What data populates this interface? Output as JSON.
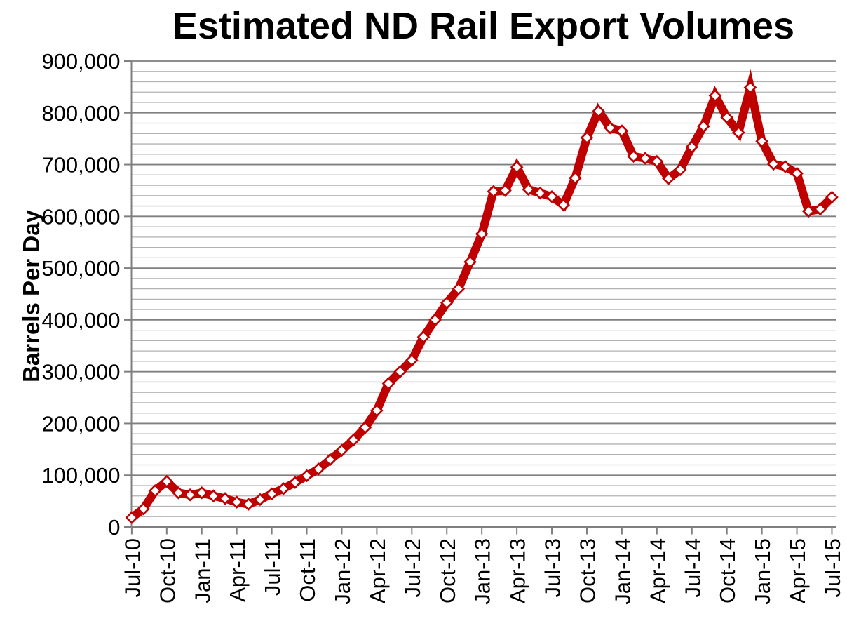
{
  "title": "Estimated ND Rail Export Volumes",
  "y_axis": {
    "title": "Barrels Per Day",
    "min": 0,
    "max": 900000,
    "major_step": 100000,
    "minor_step": 20000,
    "tick_labels": [
      "900,000",
      "800,000",
      "700,000",
      "600,000",
      "500,000",
      "400,000",
      "300,000",
      "200,000",
      "100,000",
      "0"
    ]
  },
  "x_axis": {
    "label_interval_months": 3,
    "visible_tick_labels": [
      "Jul-10",
      "Oct-10",
      "Jan-11",
      "Apr-11",
      "Jul-11",
      "Oct-11",
      "Jan-12",
      "Apr-12",
      "Jul-12",
      "Oct-12",
      "Jan-13",
      "Apr-13",
      "Jul-13",
      "Oct-13",
      "Jan-14",
      "Apr-14",
      "Jul-14",
      "Oct-14",
      "Jan-15",
      "Apr-15",
      "Jul-15"
    ]
  },
  "style": {
    "line_color": "#C00000",
    "line_width": 12,
    "marker_shape": "diamond",
    "marker_fill": "#FFFFFF",
    "marker_size": 15,
    "marker_stroke_width": 2.6,
    "minor_grid_color": "#B2B2B2",
    "major_grid_color": "#7F7F7F",
    "axis_color": "#7F7F7F",
    "text_color": "#000000",
    "background": "#FFFFFF"
  },
  "chart_data": {
    "type": "line",
    "title": "Estimated ND Rail Export Volumes",
    "xlabel": "",
    "ylabel": "Barrels Per Day",
    "ylim": [
      0,
      900000
    ],
    "grid": "horizontal major and minor",
    "legend": "none",
    "x": [
      "Jul-10",
      "Aug-10",
      "Sep-10",
      "Oct-10",
      "Nov-10",
      "Dec-10",
      "Jan-11",
      "Feb-11",
      "Mar-11",
      "Apr-11",
      "May-11",
      "Jun-11",
      "Jul-11",
      "Aug-11",
      "Sep-11",
      "Oct-11",
      "Nov-11",
      "Dec-11",
      "Jan-12",
      "Feb-12",
      "Mar-12",
      "Apr-12",
      "May-12",
      "Jun-12",
      "Jul-12",
      "Aug-12",
      "Sep-12",
      "Oct-12",
      "Nov-12",
      "Dec-12",
      "Jan-13",
      "Feb-13",
      "Mar-13",
      "Apr-13",
      "May-13",
      "Jun-13",
      "Jul-13",
      "Aug-13",
      "Sep-13",
      "Oct-13",
      "Nov-13",
      "Dec-13",
      "Jan-14",
      "Feb-14",
      "Mar-14",
      "Apr-14",
      "May-14",
      "Jun-14",
      "Jul-14",
      "Aug-14",
      "Sep-14",
      "Oct-14",
      "Nov-14",
      "Dec-14",
      "Jan-15",
      "Feb-15",
      "Mar-15",
      "Apr-15",
      "May-15",
      "Jun-15",
      "Jul-15"
    ],
    "series": [
      {
        "name": "Estimated ND Rail Export Volumes",
        "color": "#C00000",
        "values": [
          18000,
          35000,
          70000,
          88000,
          66000,
          62000,
          66000,
          60000,
          55000,
          48000,
          44000,
          53000,
          64000,
          74000,
          86000,
          99000,
          112000,
          130000,
          148000,
          168000,
          192000,
          225000,
          277000,
          300000,
          322000,
          367000,
          400000,
          433000,
          460000,
          512000,
          566000,
          648000,
          650000,
          695000,
          652000,
          645000,
          638000,
          622000,
          674000,
          752000,
          803000,
          771000,
          765000,
          716000,
          712000,
          706000,
          673000,
          690000,
          734000,
          774000,
          833000,
          791000,
          762000,
          849000,
          745000,
          701000,
          696000,
          683000,
          610000,
          614000,
          637000
        ]
      }
    ]
  }
}
